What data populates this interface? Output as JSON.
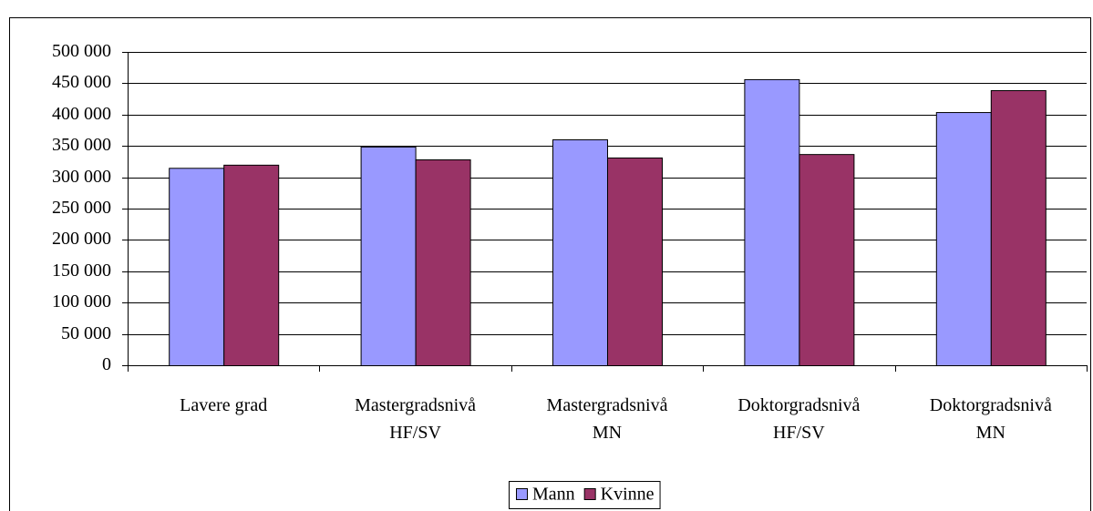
{
  "chart_data": {
    "type": "bar",
    "categories": [
      [
        "Lavere grad"
      ],
      [
        "Mastergradsnivå",
        "HF/SV"
      ],
      [
        "Mastergradsnivå",
        "MN"
      ],
      [
        "Doktorgradsnivå",
        "HF/SV"
      ],
      [
        "Doktorgradsnivå",
        "MN"
      ]
    ],
    "series": [
      {
        "name": "Mann",
        "color": "#9999ff",
        "values": [
          315000,
          349000,
          360500,
          456500,
          404000
        ]
      },
      {
        "name": "Kvinne",
        "color": "#993366",
        "values": [
          320000,
          328500,
          331500,
          337000,
          439000
        ]
      }
    ],
    "ylim": [
      0,
      500000
    ],
    "yticks": [
      {
        "value": 0,
        "label": "0"
      },
      {
        "value": 50000,
        "label": "50 000"
      },
      {
        "value": 100000,
        "label": "100 000"
      },
      {
        "value": 150000,
        "label": "150 000"
      },
      {
        "value": 200000,
        "label": "200 000"
      },
      {
        "value": 250000,
        "label": "250 000"
      },
      {
        "value": 300000,
        "label": "300 000"
      },
      {
        "value": 350000,
        "label": "350 000"
      },
      {
        "value": 400000,
        "label": "400 000"
      },
      {
        "value": 450000,
        "label": "450 000"
      },
      {
        "value": 500000,
        "label": "500 000"
      }
    ],
    "grid": true,
    "legend": "bottom"
  }
}
